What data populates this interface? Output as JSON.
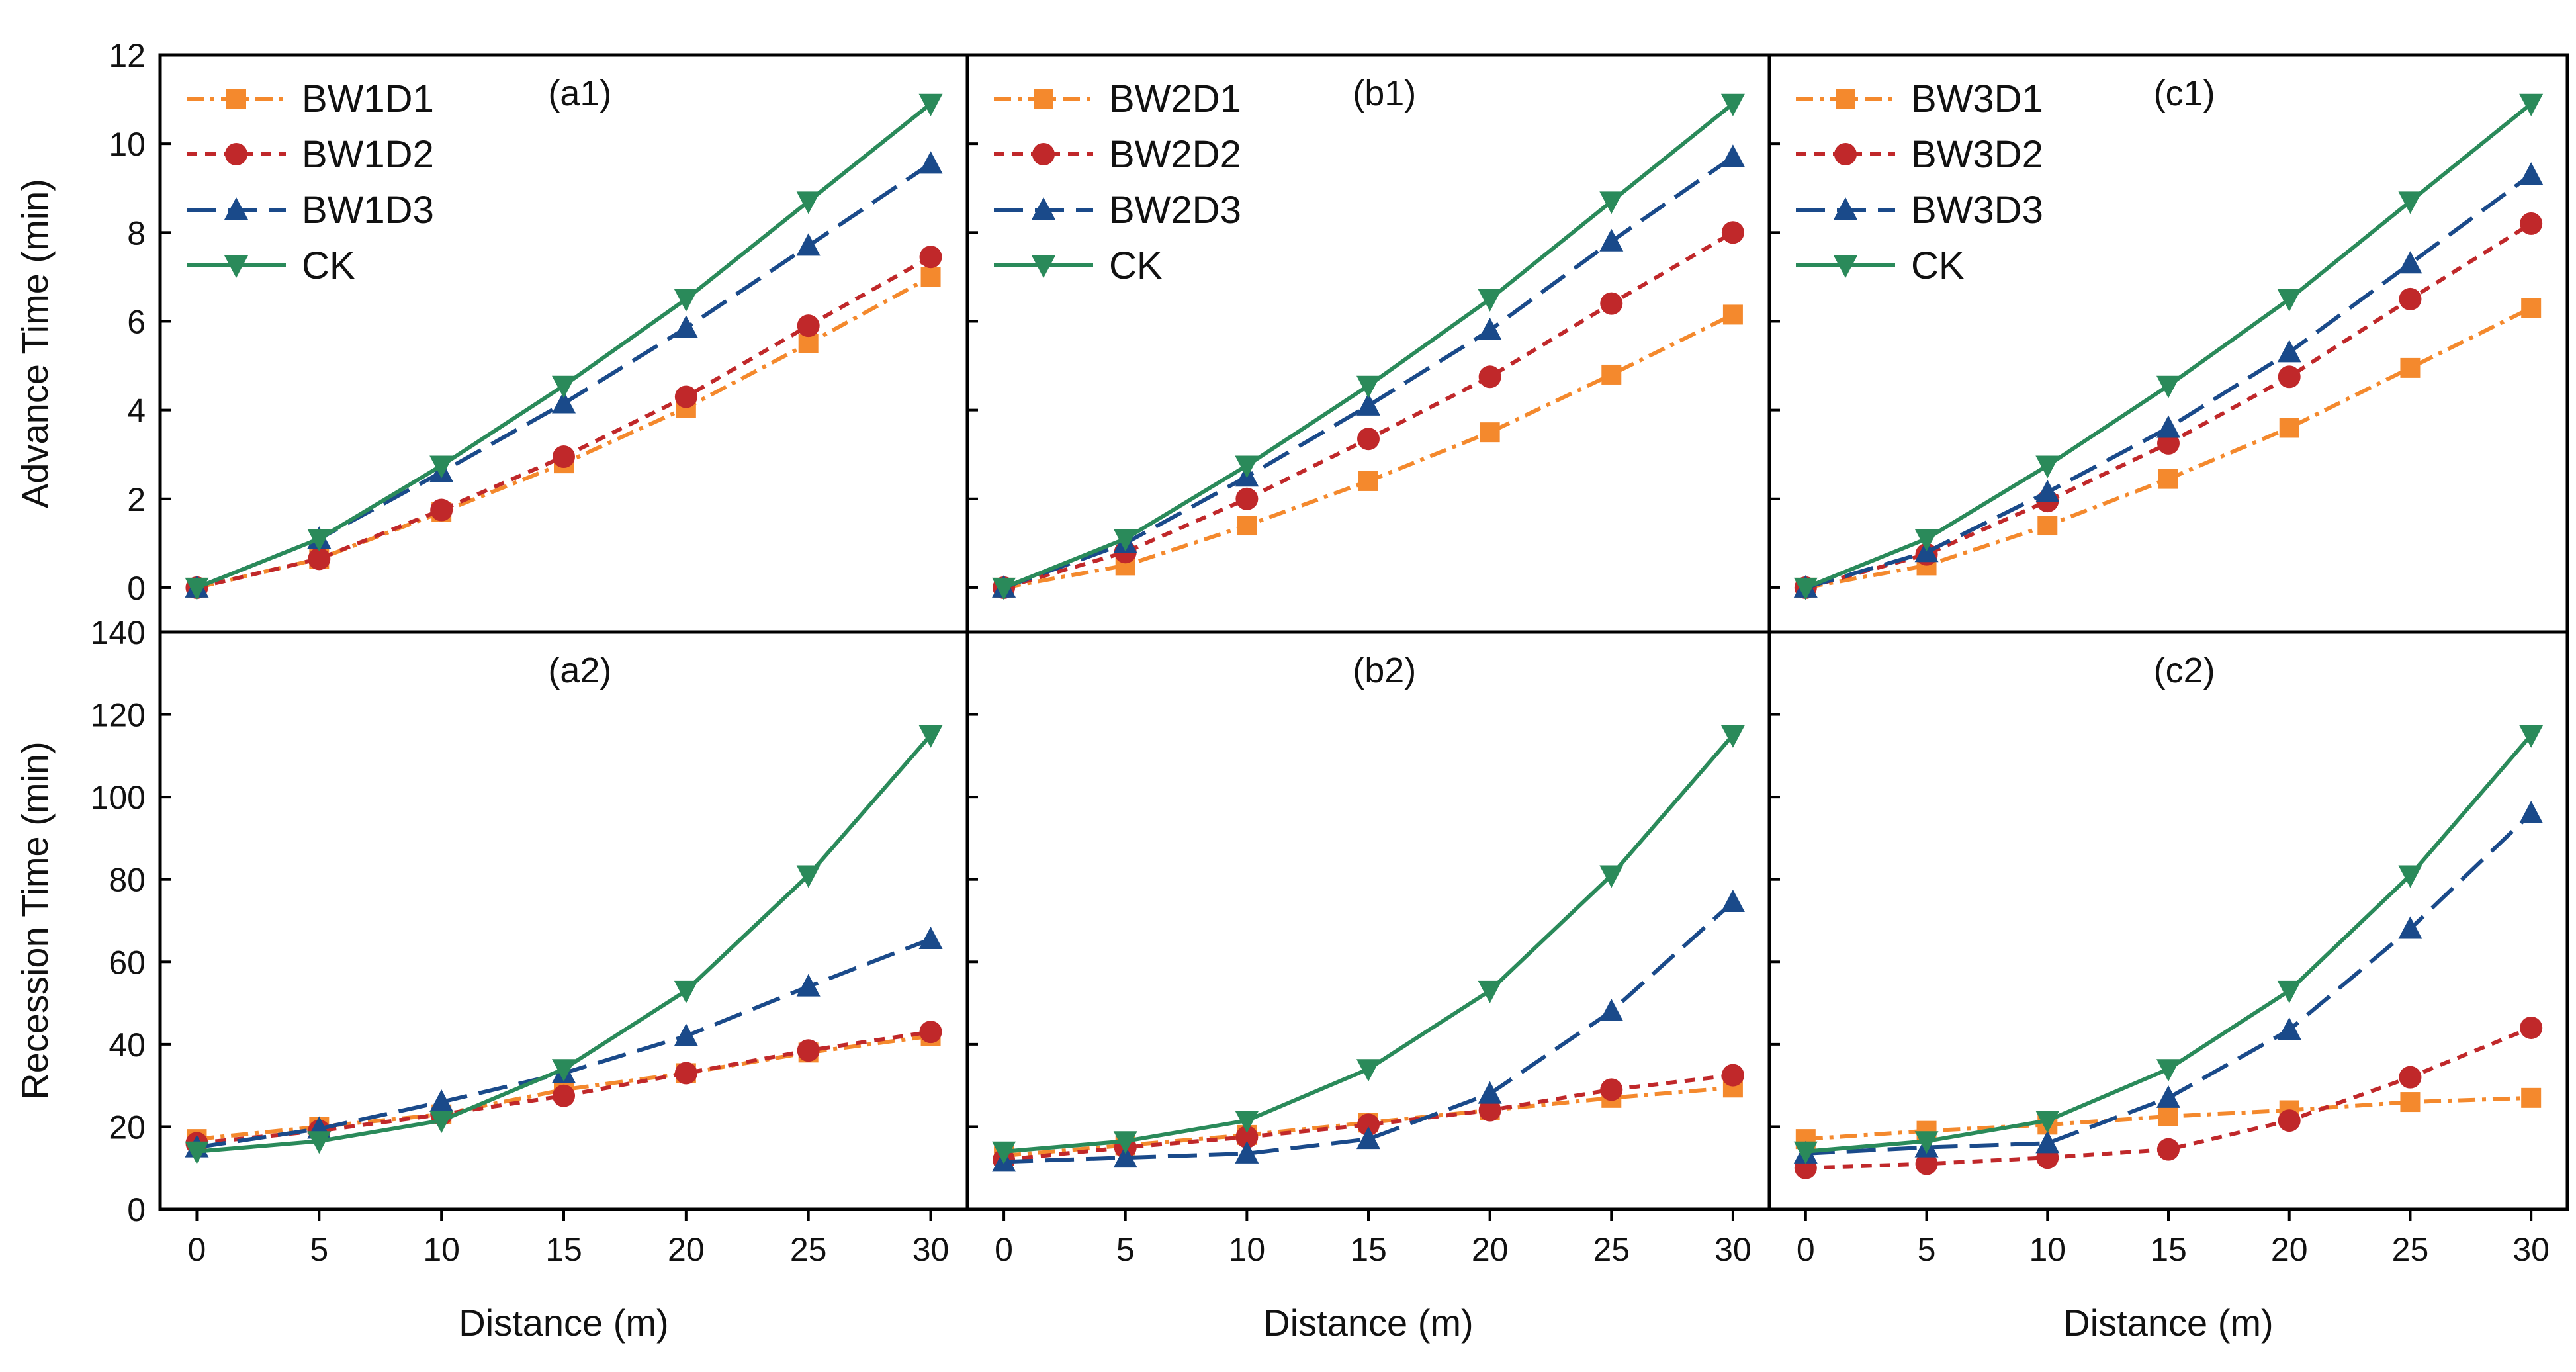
{
  "figure": {
    "xlabel": "Distance (m)",
    "colors": {
      "D1": "#f4892d",
      "D2": "#c0282a",
      "D3": "#1a4a8a",
      "CK": "#2a8a5a",
      "axis": "#000000"
    }
  },
  "chart_data": [
    {
      "type": "line",
      "id": "a1",
      "panel_label": "(a1)",
      "xlabel": "",
      "ylabel": "Advance Time (min)",
      "xlim": [
        -1.5,
        31.5
      ],
      "ylim": [
        -1,
        12
      ],
      "xticks": [],
      "yticks": [
        0,
        2,
        4,
        6,
        8,
        10,
        12
      ],
      "show_ytick_labels": true,
      "legend": true,
      "x": [
        0,
        5,
        10,
        15,
        20,
        25,
        30
      ],
      "series": [
        {
          "name": "BW1D1",
          "key": "D1",
          "values": [
            0,
            0.65,
            1.7,
            2.8,
            4.05,
            5.5,
            7.0
          ]
        },
        {
          "name": "BW1D2",
          "key": "D2",
          "values": [
            0,
            0.65,
            1.75,
            2.95,
            4.3,
            5.9,
            7.45
          ]
        },
        {
          "name": "BW1D3",
          "key": "D3",
          "values": [
            0,
            1.1,
            2.6,
            4.15,
            5.85,
            7.7,
            9.55
          ]
        },
        {
          "name": "CK",
          "key": "CK",
          "values": [
            0,
            1.1,
            2.75,
            4.55,
            6.5,
            8.7,
            10.9
          ]
        }
      ]
    },
    {
      "type": "line",
      "id": "b1",
      "panel_label": "(b1)",
      "xlabel": "",
      "ylabel": "",
      "xlim": [
        -1.5,
        31.5
      ],
      "ylim": [
        -1,
        12
      ],
      "xticks": [],
      "yticks": [
        0,
        2,
        4,
        6,
        8,
        10,
        12
      ],
      "show_ytick_labels": false,
      "legend": true,
      "x": [
        0,
        5,
        10,
        15,
        20,
        25,
        30
      ],
      "series": [
        {
          "name": "BW2D1",
          "key": "D1",
          "values": [
            0,
            0.5,
            1.4,
            2.4,
            3.5,
            4.8,
            6.15
          ]
        },
        {
          "name": "BW2D2",
          "key": "D2",
          "values": [
            0,
            0.8,
            2.0,
            3.35,
            4.75,
            6.4,
            8.0
          ]
        },
        {
          "name": "BW2D3",
          "key": "D3",
          "values": [
            0,
            1.0,
            2.5,
            4.1,
            5.8,
            7.8,
            9.7
          ]
        },
        {
          "name": "CK",
          "key": "CK",
          "values": [
            0,
            1.1,
            2.75,
            4.55,
            6.5,
            8.7,
            10.9
          ]
        }
      ]
    },
    {
      "type": "line",
      "id": "c1",
      "panel_label": "(c1)",
      "xlabel": "",
      "ylabel": "",
      "xlim": [
        -1.5,
        31.5
      ],
      "ylim": [
        -1,
        12
      ],
      "xticks": [],
      "yticks": [
        0,
        2,
        4,
        6,
        8,
        10,
        12
      ],
      "show_ytick_labels": false,
      "legend": true,
      "x": [
        0,
        5,
        10,
        15,
        20,
        25,
        30
      ],
      "series": [
        {
          "name": "BW3D1",
          "key": "D1",
          "values": [
            0,
            0.5,
            1.4,
            2.45,
            3.6,
            4.95,
            6.3
          ]
        },
        {
          "name": "BW3D2",
          "key": "D2",
          "values": [
            0,
            0.75,
            1.95,
            3.25,
            4.75,
            6.5,
            8.2
          ]
        },
        {
          "name": "BW3D3",
          "key": "D3",
          "values": [
            0,
            0.8,
            2.15,
            3.6,
            5.3,
            7.3,
            9.3
          ]
        },
        {
          "name": "CK",
          "key": "CK",
          "values": [
            0,
            1.1,
            2.75,
            4.55,
            6.5,
            8.7,
            10.9
          ]
        }
      ]
    },
    {
      "type": "line",
      "id": "a2",
      "panel_label": "(a2)",
      "xlabel": "Distance (m)",
      "ylabel": "Recession Time (min)",
      "xlim": [
        -1.5,
        31.5
      ],
      "ylim": [
        0,
        140
      ],
      "xticks": [
        0,
        5,
        10,
        15,
        20,
        25,
        30
      ],
      "yticks": [
        0,
        20,
        40,
        60,
        80,
        100,
        120,
        140
      ],
      "show_ytick_labels": true,
      "legend": false,
      "x": [
        0,
        5,
        10,
        15,
        20,
        25,
        30
      ],
      "series": [
        {
          "name": "BW1D1",
          "key": "D1",
          "values": [
            17,
            20,
            23,
            29,
            33,
            38,
            42
          ]
        },
        {
          "name": "BW1D2",
          "key": "D2",
          "values": [
            16,
            19,
            23,
            27.5,
            33,
            38.5,
            43
          ]
        },
        {
          "name": "BW1D3",
          "key": "D3",
          "values": [
            15,
            19.5,
            26,
            33,
            42,
            54,
            65.5
          ]
        },
        {
          "name": "CK",
          "key": "CK",
          "values": [
            14,
            16.5,
            21.5,
            34,
            53,
            81,
            115
          ]
        }
      ]
    },
    {
      "type": "line",
      "id": "b2",
      "panel_label": "(b2)",
      "xlabel": "Distance (m)",
      "ylabel": "",
      "xlim": [
        -1.5,
        31.5
      ],
      "ylim": [
        0,
        140
      ],
      "xticks": [
        0,
        5,
        10,
        15,
        20,
        25,
        30
      ],
      "yticks": [
        0,
        20,
        40,
        60,
        80,
        100,
        120,
        140
      ],
      "show_ytick_labels": false,
      "legend": false,
      "x": [
        0,
        5,
        10,
        15,
        20,
        25,
        30
      ],
      "series": [
        {
          "name": "BW2D1",
          "key": "D1",
          "values": [
            13,
            15.5,
            18,
            21,
            24,
            27,
            29.5
          ]
        },
        {
          "name": "BW2D2",
          "key": "D2",
          "values": [
            12,
            15,
            17.5,
            20.5,
            24,
            29,
            32.5
          ]
        },
        {
          "name": "BW2D3",
          "key": "D3",
          "values": [
            11.5,
            12.5,
            13.5,
            17,
            28,
            48,
            74.5
          ]
        },
        {
          "name": "CK",
          "key": "CK",
          "values": [
            14,
            16.5,
            21.5,
            34,
            53,
            81,
            115
          ]
        }
      ]
    },
    {
      "type": "line",
      "id": "c2",
      "panel_label": "(c2)",
      "xlabel": "Distance (m)",
      "ylabel": "",
      "xlim": [
        -1.5,
        31.5
      ],
      "ylim": [
        0,
        140
      ],
      "xticks": [
        0,
        5,
        10,
        15,
        20,
        25,
        30
      ],
      "yticks": [
        0,
        20,
        40,
        60,
        80,
        100,
        120,
        140
      ],
      "show_ytick_labels": false,
      "legend": false,
      "x": [
        0,
        5,
        10,
        15,
        20,
        25,
        30
      ],
      "series": [
        {
          "name": "BW3D1",
          "key": "D1",
          "values": [
            17,
            19,
            20.5,
            22.5,
            24,
            26,
            27
          ]
        },
        {
          "name": "BW3D2",
          "key": "D2",
          "values": [
            10,
            11,
            12.5,
            14.5,
            21.5,
            32,
            44
          ]
        },
        {
          "name": "BW3D3",
          "key": "D3",
          "values": [
            13.5,
            15,
            16,
            27,
            43.5,
            68,
            96
          ]
        },
        {
          "name": "CK",
          "key": "CK",
          "values": [
            14,
            16.5,
            21.5,
            34,
            53,
            81,
            115
          ]
        }
      ]
    }
  ]
}
